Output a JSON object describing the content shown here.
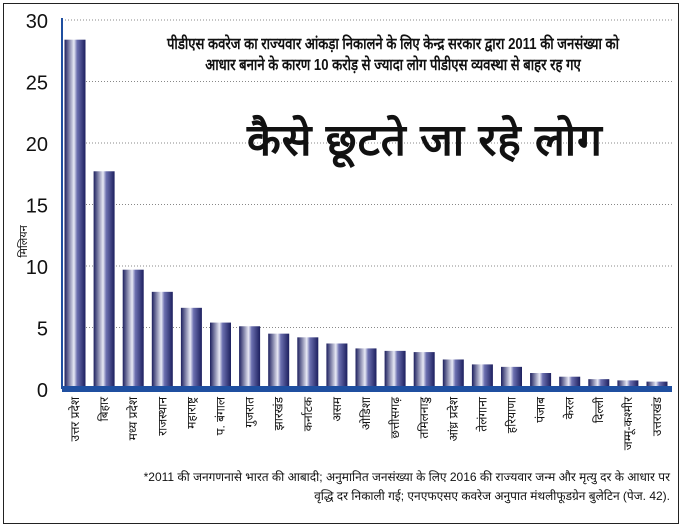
{
  "chart_data": {
    "type": "bar",
    "title": "कैसे छूटते जा रहे लोग",
    "subtitle": "पीडीएस कवरेज का राज्यवार आंकड़ा निकालने के लिए केन्द्र सरकार द्वारा 2011 की जनसंख्या को आधार बनाने के कारण 10 करोड़ से ज्यादा लोग पीडीएस व्यवस्था से बाहर रह गए",
    "xlabel": "",
    "ylabel": "मिलियन",
    "ylim": [
      0,
      30
    ],
    "yticks": [
      0,
      5,
      10,
      15,
      20,
      25,
      30
    ],
    "grid": "dotted horizontal",
    "categories": [
      "उत्तर प्रदेश",
      "बिहार",
      "मध्य प्रदेश",
      "राजस्थान",
      "महाराष्ट्र",
      "प. बंगाल",
      "गुजरात",
      "झारखंड",
      "कर्नाटक",
      "असम",
      "ओडिशा",
      "छत्तीसगढ़",
      "तमिलनाडु",
      "आंध्र प्रदेश",
      "तेलंगाना",
      "हरियाणा",
      "पंजाब",
      "केरल",
      "दिल्ली",
      "जम्मू-कश्मीर",
      "उत्तराखंड"
    ],
    "values": [
      28.4,
      17.7,
      9.7,
      7.9,
      6.6,
      5.4,
      5.1,
      4.5,
      4.2,
      3.7,
      3.3,
      3.1,
      3.0,
      2.4,
      2.0,
      1.8,
      1.3,
      1.0,
      0.8,
      0.7,
      0.6
    ],
    "bar_color": "#2a2f7a",
    "axis_color": "#1f4fa0",
    "footnote": [
      "*2011 की जनगणनासे भारत की आबादी; अनुमानित जनसंख्या के लिए 2016 की राज्यवार जन्म और मृत्यु दर के आधार पर",
      "वृद्धि दर निकाली गई; एनएफएसए कवरेज अनुपात मंथलीफूडग्रेन बुलेटिन (पेज. 42)."
    ]
  }
}
